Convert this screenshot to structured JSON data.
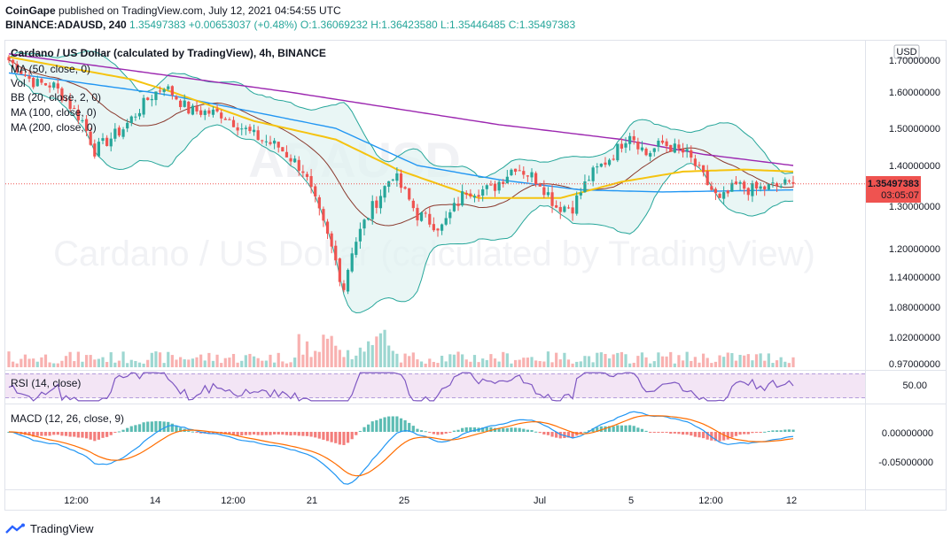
{
  "header": {
    "publisher": "CoinGape",
    "published_text": "published on TradingView.com, July 12, 2021 04:54:55 UTC",
    "symbol": "BINANCE:ADAUSD, 240",
    "price_open_pre": "1.35497383 ",
    "change": "+0.00653037 (+0.48%)",
    "ohlc": "O:1.36069232 H:1.36423580 L:1.35446485 C:1.35497383"
  },
  "legend": {
    "title": "Cardano / US Dollar (calculated by TradingView), 4h, BINANCE",
    "ma50": "MA (50, close, 0)",
    "vol": "Vol",
    "bb": "BB (20, close, 2, 0)",
    "ma100": "MA (100, close, 0)",
    "ma200": "MA (200, close, 0)",
    "rsi": "RSI (14, close)",
    "macd": "MACD (12, 26, close, 9)"
  },
  "watermark": {
    "symbol": "ADAUSD",
    "title": "Cardano / US Dollar (calculated by TradingView)"
  },
  "currency_label": "USD",
  "last_price_label": {
    "price": "1.35497383",
    "countdown": "03:05:07"
  },
  "y_ticks": [
    "1.70000000",
    "1.60000000",
    "1.50000000",
    "1.40000000",
    "1.30000000",
    "1.20000000",
    "1.14000000",
    "1.08000000",
    "1.02000000",
    "0.97000000"
  ],
  "rsi_tick": "50.00",
  "macd_ticks": [
    "0.00000000",
    "-0.05000000"
  ],
  "x_ticks": [
    "12:00",
    "14",
    "12:00",
    "21",
    "25",
    "Jul",
    "5",
    "12:00",
    "12"
  ],
  "footer": {
    "brand": "TradingView"
  },
  "colors": {
    "up": "#26a69a",
    "down": "#ef5350",
    "ma50": "#f5c30f",
    "ma100": "#2196f3",
    "ma200": "#9c27b0",
    "bb_mid": "#8a3a2e",
    "bb_band": "#26a69a",
    "bb_fill": "#e0f2f1",
    "rsi_line": "#7e57c2",
    "rsi_bg": "#f3e5f5",
    "macd_line": "#2196f3",
    "signal_line": "#ff6d00"
  },
  "chart_data": {
    "type": "candlestick",
    "pair": "ADA/USD",
    "interval": "4h",
    "ylim": [
      0.97,
      1.72
    ],
    "last_price": 1.35497383,
    "price_anchors": [
      {
        "i": 0,
        "c": 1.7
      },
      {
        "i": 6,
        "c": 1.63
      },
      {
        "i": 11,
        "c": 1.62
      },
      {
        "i": 18,
        "c": 1.52
      },
      {
        "i": 21,
        "c": 1.44
      },
      {
        "i": 28,
        "c": 1.5
      },
      {
        "i": 34,
        "c": 1.58
      },
      {
        "i": 38,
        "c": 1.62
      },
      {
        "i": 44,
        "c": 1.55
      },
      {
        "i": 52,
        "c": 1.54
      },
      {
        "i": 60,
        "c": 1.48
      },
      {
        "i": 66,
        "c": 1.45
      },
      {
        "i": 72,
        "c": 1.39
      },
      {
        "i": 76,
        "c": 1.28
      },
      {
        "i": 79,
        "c": 1.2
      },
      {
        "i": 82,
        "c": 1.12
      },
      {
        "i": 84,
        "c": 1.2
      },
      {
        "i": 88,
        "c": 1.28
      },
      {
        "i": 94,
        "c": 1.38
      },
      {
        "i": 100,
        "c": 1.28
      },
      {
        "i": 106,
        "c": 1.25
      },
      {
        "i": 112,
        "c": 1.34
      },
      {
        "i": 118,
        "c": 1.34
      },
      {
        "i": 124,
        "c": 1.4
      },
      {
        "i": 130,
        "c": 1.36
      },
      {
        "i": 134,
        "c": 1.3
      },
      {
        "i": 138,
        "c": 1.3
      },
      {
        "i": 142,
        "c": 1.37
      },
      {
        "i": 148,
        "c": 1.43
      },
      {
        "i": 152,
        "c": 1.49
      },
      {
        "i": 156,
        "c": 1.43
      },
      {
        "i": 160,
        "c": 1.46
      },
      {
        "i": 166,
        "c": 1.43
      },
      {
        "i": 170,
        "c": 1.37
      },
      {
        "i": 174,
        "c": 1.31
      },
      {
        "i": 178,
        "c": 1.35
      },
      {
        "i": 182,
        "c": 1.34
      },
      {
        "i": 188,
        "c": 1.35
      },
      {
        "i": 192,
        "c": 1.355
      }
    ],
    "ma_anchors": {
      "ma50": [
        {
          "i": 0,
          "v": 1.71
        },
        {
          "i": 30,
          "v": 1.64
        },
        {
          "i": 60,
          "v": 1.52
        },
        {
          "i": 80,
          "v": 1.47
        },
        {
          "i": 95,
          "v": 1.39
        },
        {
          "i": 115,
          "v": 1.32
        },
        {
          "i": 135,
          "v": 1.32
        },
        {
          "i": 150,
          "v": 1.36
        },
        {
          "i": 165,
          "v": 1.385
        },
        {
          "i": 180,
          "v": 1.39
        },
        {
          "i": 192,
          "v": 1.385
        }
      ],
      "ma100": [
        {
          "i": 0,
          "v": 1.66
        },
        {
          "i": 40,
          "v": 1.59
        },
        {
          "i": 80,
          "v": 1.5
        },
        {
          "i": 100,
          "v": 1.4
        },
        {
          "i": 120,
          "v": 1.365
        },
        {
          "i": 140,
          "v": 1.34
        },
        {
          "i": 160,
          "v": 1.335
        },
        {
          "i": 192,
          "v": 1.34
        }
      ],
      "ma200": [
        {
          "i": 0,
          "v": 1.72
        },
        {
          "i": 40,
          "v": 1.65
        },
        {
          "i": 80,
          "v": 1.58
        },
        {
          "i": 120,
          "v": 1.51
        },
        {
          "i": 150,
          "v": 1.47
        },
        {
          "i": 170,
          "v": 1.43
        },
        {
          "i": 192,
          "v": 1.4
        }
      ]
    },
    "rsi_last": 50.0,
    "macd_last": -0.005
  }
}
